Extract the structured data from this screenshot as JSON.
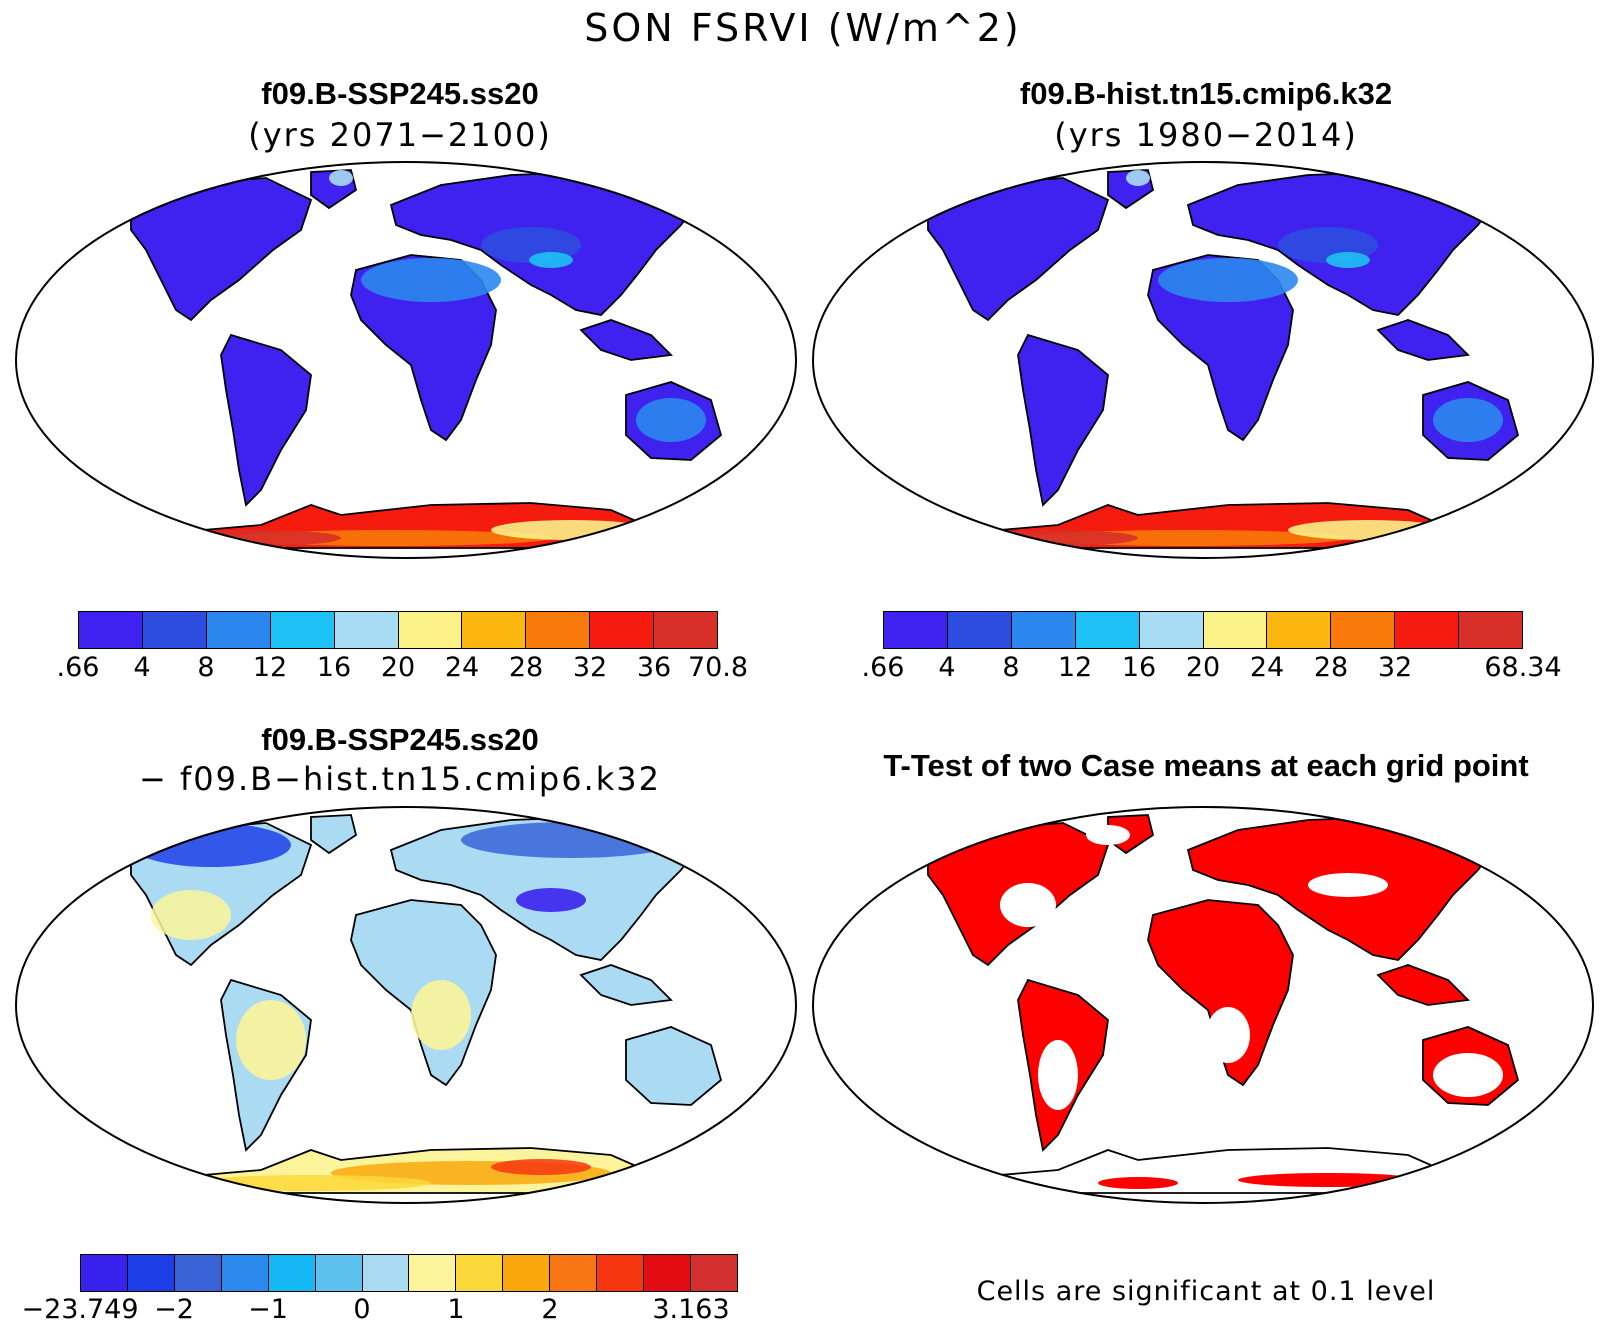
{
  "figure": {
    "title": "SON FSRVI (W/m^2)"
  },
  "panels": [
    {
      "title": "f09.B-SSP245.ss20",
      "subtitle": "(yrs 2071−2100)",
      "kind": "field",
      "colorbar": {
        "colors": [
          "#3f22f0",
          "#2d4de0",
          "#2b87ee",
          "#1ec1f5",
          "#a8dcf2",
          "#fbf187",
          "#fbb70f",
          "#f97a0b",
          "#f51b0f",
          "#d82f28"
        ],
        "ticks": [
          ".66",
          "4",
          "8",
          "12",
          "16",
          "20",
          "24",
          "28",
          "32",
          "36",
          "70.8"
        ]
      }
    },
    {
      "title": "f09.B-hist.tn15.cmip6.k32",
      "subtitle": "(yrs 1980−2014)",
      "kind": "field",
      "colorbar": {
        "colors": [
          "#3f22f0",
          "#2d4de0",
          "#2b87ee",
          "#1ec1f5",
          "#a8dcf2",
          "#fbf187",
          "#fbb70f",
          "#f97a0b",
          "#f51b0f",
          "#d82f28"
        ],
        "ticks": [
          ".66",
          "4",
          "8",
          "12",
          "16",
          "20",
          "24",
          "28",
          "32",
          "",
          "68.34"
        ]
      }
    },
    {
      "title": "f09.B-SSP245.ss20",
      "subtitle": "− f09.B−hist.tn15.cmip6.k32",
      "kind": "difference",
      "colorbar": {
        "colors": [
          "#3a22ee",
          "#1e3fe8",
          "#3a63d8",
          "#2c8aee",
          "#14b8f5",
          "#5ec2f0",
          "#aadbf2",
          "#fbf49a",
          "#fbd83a",
          "#f9a70c",
          "#f87613",
          "#f6360e",
          "#e10d12",
          "#d42f2f"
        ],
        "ticks": [
          "−23.749",
          "",
          "−2",
          "",
          "−1",
          "",
          "0",
          "",
          "1",
          "",
          "2",
          "",
          "",
          "3.163"
        ]
      }
    },
    {
      "title": "T-Test of two Case means at each grid point",
      "subtitle": "",
      "kind": "significance",
      "note": "Cells are significant at 0.1 level",
      "significant_color": "#ff0000"
    }
  ]
}
